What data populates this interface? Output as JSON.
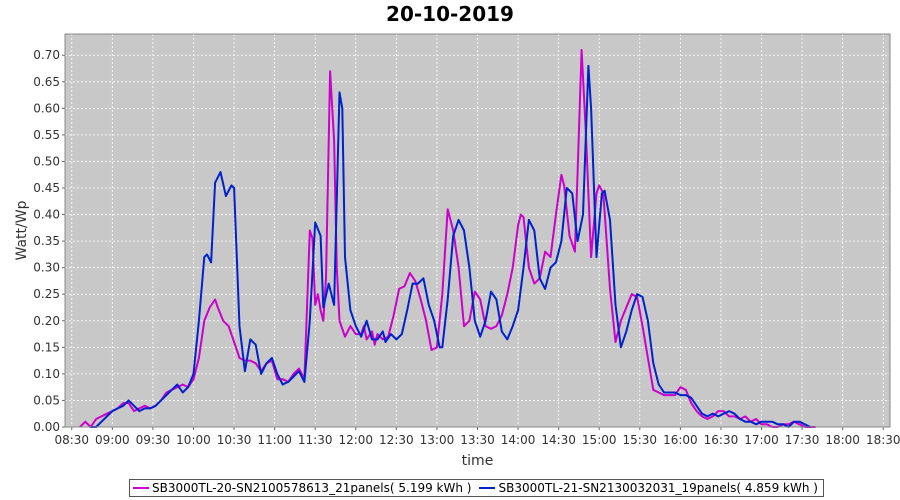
{
  "chart_data": {
    "type": "line",
    "title": "20-10-2019",
    "xlabel": "time",
    "ylabel": "Watt/Wp",
    "xlim": [
      "08:25",
      "18:35"
    ],
    "ylim": [
      0.0,
      0.74
    ],
    "x_ticks": [
      "08:30",
      "09:00",
      "09:30",
      "10:00",
      "10:30",
      "11:00",
      "11:30",
      "12:00",
      "12:30",
      "13:00",
      "13:30",
      "14:00",
      "14:30",
      "15:00",
      "15:30",
      "16:00",
      "16:30",
      "17:00",
      "17:30",
      "18:00",
      "18:30"
    ],
    "y_ticks": [
      "0.00",
      "0.05",
      "0.10",
      "0.15",
      "0.20",
      "0.25",
      "0.30",
      "0.35",
      "0.40",
      "0.45",
      "0.50",
      "0.55",
      "0.60",
      "0.65",
      "0.70"
    ],
    "grid": true,
    "legend": "bottom",
    "background": "#c8c8c8",
    "series": [
      {
        "name": "SB3000TL-20-SN2100578613_21panels( 5.199 kWh )",
        "color": "#cc00cc",
        "points": [
          [
            "08:36",
            0.0
          ],
          [
            "08:40",
            0.01
          ],
          [
            "08:44",
            0.0
          ],
          [
            "08:48",
            0.015
          ],
          [
            "08:52",
            0.02
          ],
          [
            "08:56",
            0.025
          ],
          [
            "09:00",
            0.03
          ],
          [
            "09:04",
            0.035
          ],
          [
            "09:08",
            0.045
          ],
          [
            "09:12",
            0.045
          ],
          [
            "09:16",
            0.03
          ],
          [
            "09:20",
            0.035
          ],
          [
            "09:24",
            0.04
          ],
          [
            "09:28",
            0.035
          ],
          [
            "09:32",
            0.04
          ],
          [
            "09:36",
            0.05
          ],
          [
            "09:40",
            0.065
          ],
          [
            "09:44",
            0.07
          ],
          [
            "09:48",
            0.075
          ],
          [
            "09:52",
            0.08
          ],
          [
            "09:56",
            0.075
          ],
          [
            "10:00",
            0.09
          ],
          [
            "10:04",
            0.13
          ],
          [
            "10:08",
            0.2
          ],
          [
            "10:12",
            0.225
          ],
          [
            "10:16",
            0.24
          ],
          [
            "10:18",
            0.225
          ],
          [
            "10:22",
            0.2
          ],
          [
            "10:26",
            0.19
          ],
          [
            "10:30",
            0.16
          ],
          [
            "10:34",
            0.13
          ],
          [
            "10:38",
            0.125
          ],
          [
            "10:42",
            0.125
          ],
          [
            "10:46",
            0.12
          ],
          [
            "10:50",
            0.105
          ],
          [
            "10:54",
            0.12
          ],
          [
            "10:58",
            0.125
          ],
          [
            "11:02",
            0.09
          ],
          [
            "11:06",
            0.09
          ],
          [
            "11:10",
            0.085
          ],
          [
            "11:14",
            0.1
          ],
          [
            "11:18",
            0.11
          ],
          [
            "11:22",
            0.09
          ],
          [
            "11:26",
            0.37
          ],
          [
            "11:28",
            0.355
          ],
          [
            "11:30",
            0.23
          ],
          [
            "11:32",
            0.25
          ],
          [
            "11:34",
            0.22
          ],
          [
            "11:36",
            0.2
          ],
          [
            "11:38",
            0.28
          ],
          [
            "11:41",
            0.67
          ],
          [
            "11:44",
            0.54
          ],
          [
            "11:46",
            0.3
          ],
          [
            "11:48",
            0.2
          ],
          [
            "11:52",
            0.17
          ],
          [
            "11:56",
            0.19
          ],
          [
            "12:00",
            0.175
          ],
          [
            "12:04",
            0.175
          ],
          [
            "12:06",
            0.19
          ],
          [
            "12:08",
            0.165
          ],
          [
            "12:12",
            0.18
          ],
          [
            "12:14",
            0.155
          ],
          [
            "12:16",
            0.175
          ],
          [
            "12:20",
            0.165
          ],
          [
            "12:24",
            0.17
          ],
          [
            "12:28",
            0.21
          ],
          [
            "12:32",
            0.26
          ],
          [
            "12:36",
            0.265
          ],
          [
            "12:40",
            0.29
          ],
          [
            "12:44",
            0.275
          ],
          [
            "12:48",
            0.24
          ],
          [
            "12:52",
            0.2
          ],
          [
            "12:56",
            0.145
          ],
          [
            "13:00",
            0.15
          ],
          [
            "13:04",
            0.25
          ],
          [
            "13:08",
            0.41
          ],
          [
            "13:12",
            0.37
          ],
          [
            "13:16",
            0.3
          ],
          [
            "13:20",
            0.19
          ],
          [
            "13:24",
            0.2
          ],
          [
            "13:28",
            0.255
          ],
          [
            "13:32",
            0.24
          ],
          [
            "13:36",
            0.19
          ],
          [
            "13:40",
            0.185
          ],
          [
            "13:44",
            0.19
          ],
          [
            "13:48",
            0.21
          ],
          [
            "13:52",
            0.25
          ],
          [
            "13:56",
            0.3
          ],
          [
            "14:00",
            0.38
          ],
          [
            "14:02",
            0.4
          ],
          [
            "14:04",
            0.395
          ],
          [
            "14:08",
            0.3
          ],
          [
            "14:12",
            0.27
          ],
          [
            "14:16",
            0.28
          ],
          [
            "14:20",
            0.33
          ],
          [
            "14:24",
            0.32
          ],
          [
            "14:28",
            0.4
          ],
          [
            "14:32",
            0.475
          ],
          [
            "14:34",
            0.455
          ],
          [
            "14:38",
            0.36
          ],
          [
            "14:42",
            0.33
          ],
          [
            "14:44",
            0.48
          ],
          [
            "14:47",
            0.71
          ],
          [
            "14:50",
            0.56
          ],
          [
            "14:54",
            0.32
          ],
          [
            "14:58",
            0.44
          ],
          [
            "15:00",
            0.455
          ],
          [
            "15:03",
            0.44
          ],
          [
            "15:08",
            0.26
          ],
          [
            "15:12",
            0.16
          ],
          [
            "15:16",
            0.2
          ],
          [
            "15:20",
            0.225
          ],
          [
            "15:24",
            0.25
          ],
          [
            "15:28",
            0.245
          ],
          [
            "15:32",
            0.19
          ],
          [
            "15:36",
            0.13
          ],
          [
            "15:40",
            0.07
          ],
          [
            "15:44",
            0.065
          ],
          [
            "15:48",
            0.06
          ],
          [
            "15:52",
            0.06
          ],
          [
            "15:56",
            0.06
          ],
          [
            "16:00",
            0.075
          ],
          [
            "16:04",
            0.07
          ],
          [
            "16:08",
            0.045
          ],
          [
            "16:12",
            0.03
          ],
          [
            "16:16",
            0.02
          ],
          [
            "16:20",
            0.015
          ],
          [
            "16:24",
            0.02
          ],
          [
            "16:28",
            0.03
          ],
          [
            "16:32",
            0.03
          ],
          [
            "16:36",
            0.02
          ],
          [
            "16:40",
            0.02
          ],
          [
            "16:44",
            0.015
          ],
          [
            "16:48",
            0.02
          ],
          [
            "16:52",
            0.01
          ],
          [
            "16:56",
            0.015
          ],
          [
            "17:00",
            0.005
          ],
          [
            "17:04",
            0.005
          ],
          [
            "17:08",
            0.0
          ],
          [
            "17:12",
            0.0
          ],
          [
            "17:16",
            0.005
          ],
          [
            "17:20",
            0.005
          ],
          [
            "17:24",
            0.01
          ],
          [
            "17:28",
            0.005
          ],
          [
            "17:32",
            0.0
          ],
          [
            "17:36",
            0.0
          ],
          [
            "17:40",
            0.0
          ]
        ]
      },
      {
        "name": "SB3000TL-21-SN2130032031_19panels( 4.859 kWh )",
        "color": "#0022cc",
        "points": [
          [
            "08:44",
            0.0
          ],
          [
            "08:48",
            0.0
          ],
          [
            "08:52",
            0.01
          ],
          [
            "08:56",
            0.02
          ],
          [
            "09:00",
            0.03
          ],
          [
            "09:04",
            0.035
          ],
          [
            "09:08",
            0.04
          ],
          [
            "09:12",
            0.05
          ],
          [
            "09:16",
            0.04
          ],
          [
            "09:20",
            0.03
          ],
          [
            "09:24",
            0.035
          ],
          [
            "09:28",
            0.035
          ],
          [
            "09:32",
            0.04
          ],
          [
            "09:36",
            0.05
          ],
          [
            "09:40",
            0.06
          ],
          [
            "09:44",
            0.07
          ],
          [
            "09:48",
            0.08
          ],
          [
            "09:52",
            0.065
          ],
          [
            "09:56",
            0.075
          ],
          [
            "10:00",
            0.1
          ],
          [
            "10:04",
            0.2
          ],
          [
            "10:08",
            0.32
          ],
          [
            "10:10",
            0.325
          ],
          [
            "10:13",
            0.31
          ],
          [
            "10:16",
            0.46
          ],
          [
            "10:20",
            0.48
          ],
          [
            "10:24",
            0.435
          ],
          [
            "10:28",
            0.455
          ],
          [
            "10:30",
            0.45
          ],
          [
            "10:34",
            0.19
          ],
          [
            "10:38",
            0.105
          ],
          [
            "10:42",
            0.165
          ],
          [
            "10:46",
            0.155
          ],
          [
            "10:50",
            0.1
          ],
          [
            "10:54",
            0.12
          ],
          [
            "10:58",
            0.13
          ],
          [
            "11:02",
            0.1
          ],
          [
            "11:06",
            0.08
          ],
          [
            "11:10",
            0.085
          ],
          [
            "11:14",
            0.095
          ],
          [
            "11:18",
            0.105
          ],
          [
            "11:22",
            0.085
          ],
          [
            "11:26",
            0.2
          ],
          [
            "11:30",
            0.385
          ],
          [
            "11:34",
            0.36
          ],
          [
            "11:36",
            0.225
          ],
          [
            "11:40",
            0.27
          ],
          [
            "11:44",
            0.23
          ],
          [
            "11:48",
            0.63
          ],
          [
            "11:50",
            0.6
          ],
          [
            "11:52",
            0.32
          ],
          [
            "11:56",
            0.22
          ],
          [
            "12:00",
            0.19
          ],
          [
            "12:04",
            0.17
          ],
          [
            "12:08",
            0.2
          ],
          [
            "12:12",
            0.165
          ],
          [
            "12:16",
            0.165
          ],
          [
            "12:20",
            0.18
          ],
          [
            "12:22",
            0.16
          ],
          [
            "12:26",
            0.175
          ],
          [
            "12:30",
            0.165
          ],
          [
            "12:34",
            0.175
          ],
          [
            "12:38",
            0.22
          ],
          [
            "12:42",
            0.27
          ],
          [
            "12:46",
            0.27
          ],
          [
            "12:50",
            0.28
          ],
          [
            "12:54",
            0.23
          ],
          [
            "12:58",
            0.2
          ],
          [
            "13:02",
            0.15
          ],
          [
            "13:04",
            0.15
          ],
          [
            "13:08",
            0.24
          ],
          [
            "13:12",
            0.36
          ],
          [
            "13:16",
            0.39
          ],
          [
            "13:20",
            0.37
          ],
          [
            "13:24",
            0.3
          ],
          [
            "13:28",
            0.2
          ],
          [
            "13:32",
            0.17
          ],
          [
            "13:36",
            0.2
          ],
          [
            "13:40",
            0.255
          ],
          [
            "13:44",
            0.24
          ],
          [
            "13:48",
            0.18
          ],
          [
            "13:52",
            0.165
          ],
          [
            "13:56",
            0.19
          ],
          [
            "14:00",
            0.22
          ],
          [
            "14:04",
            0.3
          ],
          [
            "14:08",
            0.39
          ],
          [
            "14:12",
            0.37
          ],
          [
            "14:16",
            0.28
          ],
          [
            "14:20",
            0.26
          ],
          [
            "14:24",
            0.3
          ],
          [
            "14:28",
            0.31
          ],
          [
            "14:32",
            0.35
          ],
          [
            "14:36",
            0.45
          ],
          [
            "14:40",
            0.44
          ],
          [
            "14:44",
            0.35
          ],
          [
            "14:48",
            0.4
          ],
          [
            "14:52",
            0.68
          ],
          [
            "14:54",
            0.6
          ],
          [
            "14:58",
            0.32
          ],
          [
            "15:02",
            0.44
          ],
          [
            "15:04",
            0.445
          ],
          [
            "15:08",
            0.39
          ],
          [
            "15:12",
            0.23
          ],
          [
            "15:16",
            0.15
          ],
          [
            "15:20",
            0.18
          ],
          [
            "15:24",
            0.22
          ],
          [
            "15:28",
            0.25
          ],
          [
            "15:32",
            0.245
          ],
          [
            "15:36",
            0.2
          ],
          [
            "15:40",
            0.12
          ],
          [
            "15:44",
            0.08
          ],
          [
            "15:48",
            0.065
          ],
          [
            "15:52",
            0.065
          ],
          [
            "15:56",
            0.065
          ],
          [
            "16:00",
            0.06
          ],
          [
            "16:04",
            0.06
          ],
          [
            "16:08",
            0.055
          ],
          [
            "16:12",
            0.04
          ],
          [
            "16:16",
            0.025
          ],
          [
            "16:20",
            0.02
          ],
          [
            "16:24",
            0.025
          ],
          [
            "16:28",
            0.02
          ],
          [
            "16:32",
            0.025
          ],
          [
            "16:36",
            0.03
          ],
          [
            "16:40",
            0.025
          ],
          [
            "16:44",
            0.015
          ],
          [
            "16:48",
            0.01
          ],
          [
            "16:52",
            0.01
          ],
          [
            "16:56",
            0.005
          ],
          [
            "17:00",
            0.01
          ],
          [
            "17:04",
            0.01
          ],
          [
            "17:08",
            0.01
          ],
          [
            "17:12",
            0.005
          ],
          [
            "17:16",
            0.005
          ],
          [
            "17:20",
            0.0
          ],
          [
            "17:24",
            0.01
          ],
          [
            "17:28",
            0.01
          ],
          [
            "17:32",
            0.005
          ],
          [
            "17:36",
            0.0
          ]
        ]
      }
    ]
  }
}
